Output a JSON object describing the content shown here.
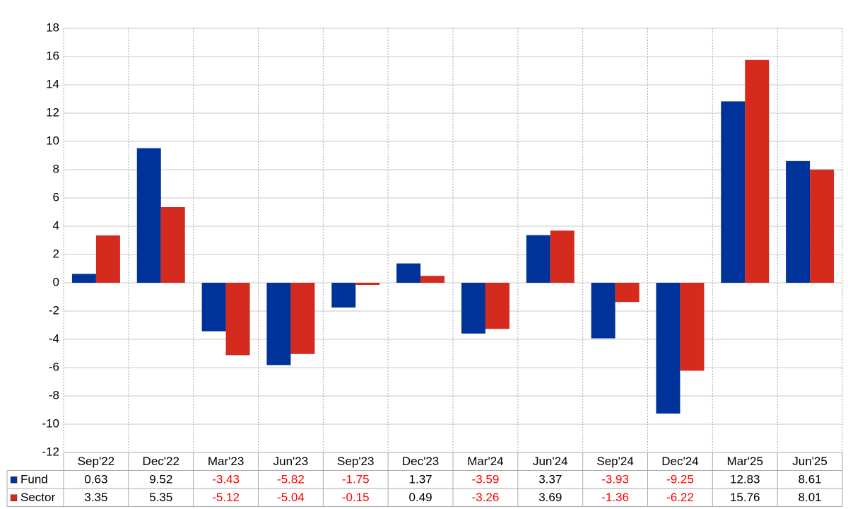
{
  "chart_data": {
    "type": "bar",
    "categories": [
      "Sep'22",
      "Dec'22",
      "Mar'23",
      "Jun'23",
      "Sep'23",
      "Dec'23",
      "Mar'24",
      "Jun'24",
      "Sep'24",
      "Dec'24",
      "Mar'25",
      "Jun'25"
    ],
    "series": [
      {
        "name": "Fund",
        "color": "#003399",
        "values": [
          0.63,
          9.52,
          -3.43,
          -5.82,
          -1.75,
          1.37,
          -3.59,
          3.37,
          -3.93,
          -9.25,
          12.83,
          8.61
        ]
      },
      {
        "name": "Sector",
        "color": "#d52b1e",
        "values": [
          3.35,
          5.35,
          -5.12,
          -5.04,
          -0.15,
          0.49,
          -3.26,
          3.69,
          -1.36,
          -6.22,
          15.76,
          8.01
        ]
      }
    ],
    "ylim": [
      -12,
      18
    ],
    "yticks": [
      -12,
      -10,
      -8,
      -6,
      -4,
      -2,
      0,
      2,
      4,
      6,
      8,
      10,
      12,
      14,
      16,
      18
    ],
    "grid": true,
    "data_table": true,
    "negative_color": "#ff0000"
  }
}
